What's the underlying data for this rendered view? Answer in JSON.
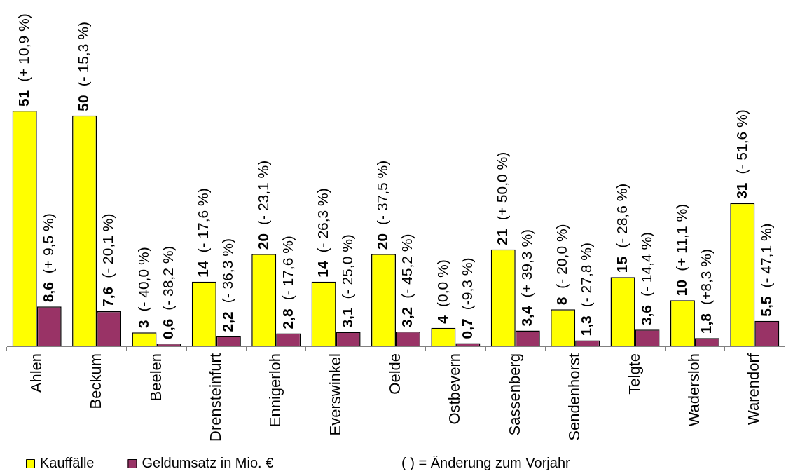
{
  "chart_data": {
    "type": "bar",
    "categories": [
      "Ahlen",
      "Beckum",
      "Beelen",
      "Drensteinfurt",
      "Ennigerloh",
      "Everswinkel",
      "Oelde",
      "Ostbevern",
      "Sassenberg",
      "Sendenhorst",
      "Telgte",
      "Wadersloh",
      "Warendorf"
    ],
    "series": [
      {
        "name": "Kauffälle",
        "color": "#ffff00",
        "values": [
          51,
          50,
          3,
          14,
          20,
          14,
          20,
          4,
          21,
          8,
          15,
          10,
          31
        ],
        "value_labels": [
          "51 (+ 10,9 %)",
          "50 (- 15,3 %)",
          "3 (- 40,0 %)",
          "14 (- 17,6 %)",
          "20 (- 23,1 %)",
          "14 (- 26,3 %)",
          "20 (- 37,5 %)",
          "4 (0,0 %)",
          "21 (+ 50,0 %)",
          "8 (- 20,0 %)",
          "15 (- 28,6 %)",
          "10 (+ 11,1 %)",
          "31 (- 51,6 %)"
        ]
      },
      {
        "name": "Geldumsatz in Mio. €",
        "color": "#993366",
        "values": [
          8.6,
          7.6,
          0.6,
          2.2,
          2.8,
          3.1,
          3.2,
          0.7,
          3.4,
          1.3,
          3.6,
          1.8,
          5.5
        ],
        "value_labels": [
          "8,6 (+ 9,5 %)",
          "7,6 (- 20,1 %)",
          "0,6 (- 38,2 %)",
          "2,2 (- 36,3 %)",
          "2,8 (- 17,6 %)",
          "3,1 (- 25,0 %)",
          "3,2 (- 45,2 %)",
          "0,7 (-9,3 %)",
          "3,4 (+ 39,3 %)",
          "1,3 (- 27,8 %)",
          "3,6 (- 14,4 %)",
          "1,8 (+8,3 %)",
          "5,5 (- 47,1 %)"
        ]
      }
    ],
    "ylim": [
      0,
      75
    ],
    "tick_labels": "x",
    "legend": "bottom left",
    "annotations": [
      "( ) = Änderung zum Vorjahr"
    ]
  }
}
